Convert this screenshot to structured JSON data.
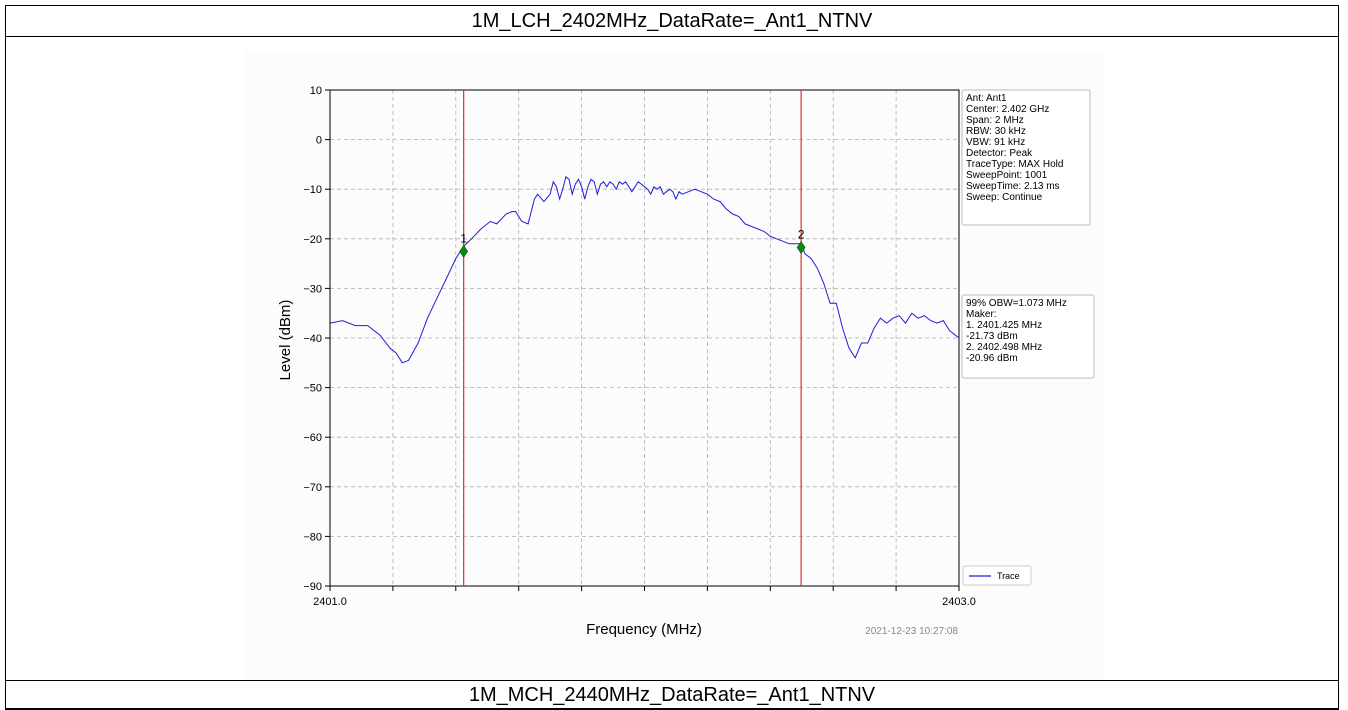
{
  "header_top": "1M_LCH_2402MHz_DataRate=_Ant1_NTNV",
  "header_bottom": "1M_MCH_2440MHz_DataRate=_Ant1_NTNV",
  "info_box": [
    "Ant: Ant1",
    "Center: 2.402 GHz",
    "Span: 2 MHz",
    "RBW: 30 kHz",
    "VBW: 91 kHz",
    "Detector: Peak",
    "TraceType: MAX Hold",
    "SweepPoint: 1001",
    "SweepTime: 2.13 ms",
    "Sweep: Continue"
  ],
  "obw_box": [
    "99% OBW=1.073 MHz",
    "Maker:",
    "1. 2401.425 MHz",
    "   -21.73 dBm",
    "2. 2402.498 MHz",
    "   -20.96 dBm"
  ],
  "timestamp": "2021-12-23 10:27:08",
  "colors": {
    "trace": "#1f1fd6",
    "marker_line": "#e03030",
    "marker": "#0a8a0a"
  },
  "chart_data": {
    "type": "line",
    "xlabel": "Frequency (MHz)",
    "ylabel": "Level (dBm)",
    "xlim": [
      2401.0,
      2403.0
    ],
    "ylim": [
      -90,
      10
    ],
    "x_tick_labels": [
      "2401.0",
      "2403.0"
    ],
    "y_ticks": [
      10,
      0,
      -10,
      -20,
      -30,
      -40,
      -50,
      -60,
      -70,
      -80,
      -90
    ],
    "y_tick_labels": [
      "10",
      "0",
      "−10",
      "−20",
      "−30",
      "−40",
      "−50",
      "−60",
      "−70",
      "−80",
      "−90"
    ],
    "grid": true,
    "legend": "bottom-right",
    "series": [
      {
        "name": "Trace",
        "x": [
          2401.0,
          2401.04,
          2401.08,
          2401.12,
          2401.16,
          2401.19,
          2401.21,
          2401.23,
          2401.25,
          2401.28,
          2401.31,
          2401.34,
          2401.37,
          2401.4,
          2401.425,
          2401.45,
          2401.48,
          2401.51,
          2401.53,
          2401.56,
          2401.58,
          2401.59,
          2401.61,
          2401.63,
          2401.65,
          2401.66,
          2401.68,
          2401.7,
          2401.71,
          2401.72,
          2401.73,
          2401.74,
          2401.75,
          2401.76,
          2401.77,
          2401.78,
          2401.79,
          2401.8,
          2401.81,
          2401.82,
          2401.83,
          2401.84,
          2401.85,
          2401.86,
          2401.87,
          2401.88,
          2401.89,
          2401.9,
          2401.91,
          2401.92,
          2401.93,
          2401.94,
          2401.95,
          2401.96,
          2401.97,
          2401.98,
          2401.99,
          2402.0,
          2402.01,
          2402.02,
          2402.03,
          2402.04,
          2402.05,
          2402.06,
          2402.07,
          2402.08,
          2402.09,
          2402.1,
          2402.11,
          2402.12,
          2402.14,
          2402.16,
          2402.18,
          2402.2,
          2402.22,
          2402.24,
          2402.26,
          2402.28,
          2402.3,
          2402.32,
          2402.34,
          2402.36,
          2402.38,
          2402.4,
          2402.42,
          2402.44,
          2402.46,
          2402.48,
          2402.498,
          2402.51,
          2402.53,
          2402.55,
          2402.57,
          2402.59,
          2402.61,
          2402.63,
          2402.65,
          2402.67,
          2402.69,
          2402.71,
          2402.73,
          2402.75,
          2402.77,
          2402.79,
          2402.81,
          2402.83,
          2402.85,
          2402.87,
          2402.89,
          2402.91,
          2402.93,
          2402.95,
          2402.97,
          2403.0
        ],
        "y": [
          -37,
          -36.5,
          -37.5,
          -37.5,
          -39.5,
          -42,
          -43,
          -45,
          -44.5,
          -41,
          -36,
          -32,
          -28,
          -24,
          -21.5,
          -20,
          -18,
          -16.5,
          -17,
          -15,
          -14.5,
          -14.5,
          -16.5,
          -17,
          -12,
          -11,
          -12.5,
          -11,
          -8.5,
          -9.5,
          -12,
          -10,
          -7.5,
          -8,
          -11,
          -9,
          -8,
          -9.5,
          -12,
          -9.5,
          -8,
          -8.5,
          -11,
          -9,
          -8.5,
          -9.5,
          -8.5,
          -9,
          -10,
          -8.5,
          -9,
          -8.5,
          -9.5,
          -10.5,
          -9.5,
          -8.5,
          -9,
          -9.5,
          -10,
          -11,
          -9.5,
          -10,
          -9.5,
          -11,
          -10.5,
          -10,
          -10.5,
          -12,
          -10.5,
          -11,
          -10.5,
          -10,
          -10.5,
          -11,
          -12,
          -12.5,
          -14,
          -15,
          -15.5,
          -17,
          -17.5,
          -18,
          -18.5,
          -19.5,
          -20,
          -20.5,
          -21,
          -21,
          -21,
          -23,
          -24,
          -26,
          -29,
          -33,
          -33,
          -38,
          -42,
          -44,
          -41,
          -41,
          -38,
          -36,
          -37,
          -36,
          -35.5,
          -37,
          -35,
          -36,
          -35.5,
          -36.5,
          -37,
          -36.5,
          -38.5,
          -40
        ]
      }
    ],
    "markers": [
      {
        "label": "1",
        "x": 2401.425,
        "y": -21.73
      },
      {
        "label": "2",
        "x": 2402.498,
        "y": -20.96
      }
    ]
  }
}
